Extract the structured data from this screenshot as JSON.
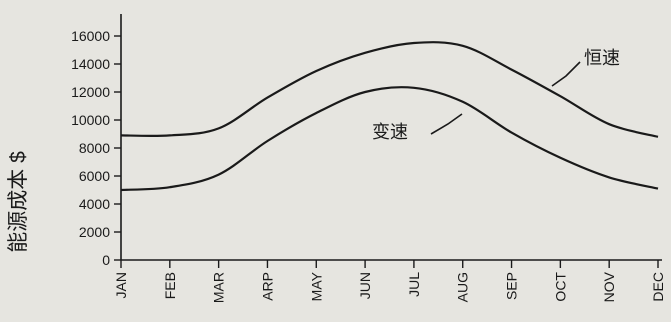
{
  "chart_data": {
    "type": "line",
    "title": "",
    "ylabel": "能源成本 $",
    "xlabel": "",
    "categories": [
      "JAN",
      "FEB",
      "MAR",
      "ARP",
      "MAY",
      "JUN",
      "JUL",
      "AUG",
      "SEP",
      "OCT",
      "NOV",
      "DEC"
    ],
    "yticks": [
      0,
      2000,
      4000,
      6000,
      8000,
      10000,
      12000,
      14000,
      16000
    ],
    "ytick_labels": [
      "0",
      "2000",
      "4000",
      "6000",
      "8000",
      "10000",
      "12000",
      "14000",
      "16000"
    ],
    "ylim": [
      0,
      16000
    ],
    "grid": false,
    "legend": "none",
    "series": [
      {
        "name": "恒速",
        "values": [
          8900,
          8900,
          9400,
          11600,
          13500,
          14800,
          15500,
          15300,
          13600,
          11700,
          9700,
          8800
        ]
      },
      {
        "name": "变速",
        "values": [
          5000,
          5200,
          6100,
          8500,
          10500,
          12000,
          12300,
          11300,
          9100,
          7300,
          5900,
          5100
        ]
      }
    ]
  }
}
